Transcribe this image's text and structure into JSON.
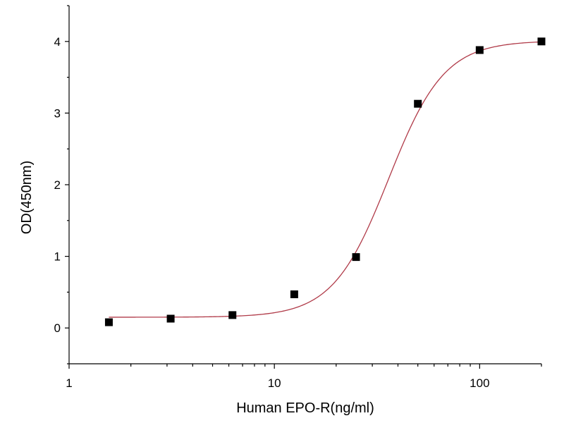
{
  "chart_data": {
    "type": "scatter",
    "title": "",
    "xlabel": "Human EPO-R(ng/ml)",
    "ylabel": "OD(450nm)",
    "x_scale": "log",
    "xlim": [
      1,
      200
    ],
    "ylim": [
      -0.5,
      4.5
    ],
    "x_ticks": [
      1,
      10,
      100
    ],
    "x_tick_labels": [
      "1",
      "10",
      "100"
    ],
    "y_ticks": [
      0,
      1,
      2,
      3,
      4
    ],
    "y_tick_labels": [
      "0",
      "1",
      "2",
      "3",
      "4"
    ],
    "grid": false,
    "legend": "none",
    "series": [
      {
        "type": "scatter",
        "marker": "square",
        "color": "#000000",
        "x": [
          1.5625,
          3.125,
          6.25,
          12.5,
          25,
          50,
          100,
          200
        ],
        "y": [
          0.08,
          0.13,
          0.18,
          0.47,
          0.99,
          3.13,
          3.88,
          4.0
        ]
      },
      {
        "type": "line",
        "fit": "logistic",
        "color": "#b03a48",
        "bottom": 0.15,
        "top": 4.01,
        "ec50": 36,
        "hill": 3.2
      }
    ]
  }
}
